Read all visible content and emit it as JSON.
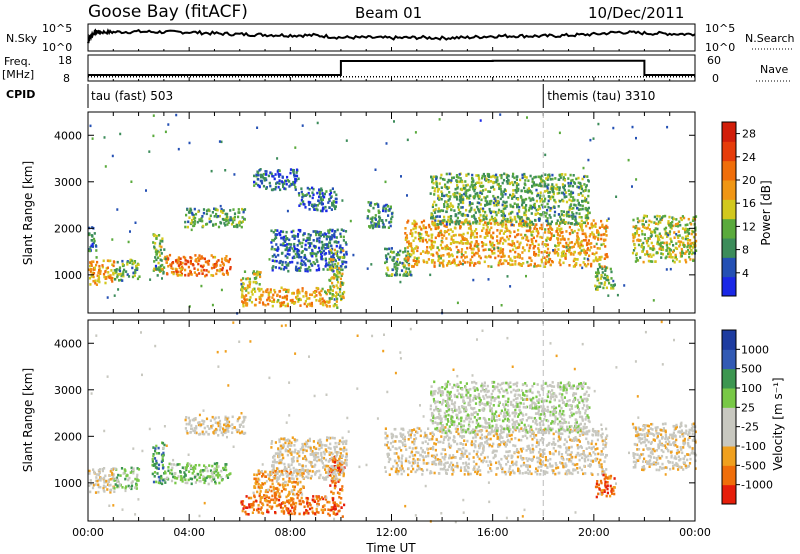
{
  "header": {
    "station": "Goose Bay (fitACF)",
    "beam": "Beam 01",
    "date": "10/Dec/2011"
  },
  "colors": {
    "power_scale": [
      "#1a28e6",
      "#2450b4",
      "#3c8c5a",
      "#5aaa3c",
      "#d2c81e",
      "#f09614",
      "#f06e0a",
      "#e63c0a",
      "#d21e0a"
    ],
    "velocity_scale": [
      "#e61e0a",
      "#f06e0a",
      "#f0a01e",
      "#c8c8c0",
      "#c8c8c0",
      "#78c846",
      "#3c9650",
      "#325ab4",
      "#1e3ca0"
    ]
  },
  "chart_data": [
    {
      "panel": "noise",
      "type": "line",
      "left_label": "N.Sky",
      "right_label": "N.Search",
      "left_ticks": [
        "10^5",
        "10^0"
      ],
      "right_ticks": [
        "10^5",
        "10^0"
      ],
      "x_range": [
        0,
        24
      ],
      "y_range": [
        0,
        1
      ],
      "series": [
        {
          "x": [
            0.0,
            0.1,
            0.3,
            0.5,
            1,
            2,
            3,
            4,
            5,
            6,
            7,
            8,
            9,
            10,
            11,
            12,
            13,
            14,
            15,
            16,
            17,
            18,
            19,
            20,
            21,
            22,
            23,
            24
          ],
          "y": [
            0.3,
            0.55,
            0.72,
            0.7,
            0.7,
            0.72,
            0.7,
            0.7,
            0.65,
            0.62,
            0.6,
            0.58,
            0.58,
            0.5,
            0.5,
            0.48,
            0.5,
            0.48,
            0.5,
            0.55,
            0.56,
            0.55,
            0.58,
            0.62,
            0.7,
            0.66,
            0.64,
            0.62
          ]
        }
      ]
    },
    {
      "panel": "frequency",
      "type": "line",
      "left_label": "Freq.\n[MHz]",
      "right_label": "Nave",
      "left_ticks": [
        "18",
        "8"
      ],
      "right_ticks": [
        "60",
        "0"
      ],
      "x_range": [
        0,
        24
      ],
      "series": [
        {
          "name": "Freq.",
          "x": [
            0,
            10,
            10,
            16,
            16,
            22,
            22,
            24
          ],
          "y": [
            10.3,
            10.3,
            15.7,
            15.7,
            15.8,
            15.8,
            10.3,
            10.3
          ]
        },
        {
          "name": "Nave",
          "x": [
            0,
            24
          ],
          "y": [
            10,
            10
          ]
        }
      ]
    },
    {
      "panel": "cpid",
      "type": "table",
      "label": "CPID",
      "segments": [
        {
          "start": 0,
          "end": 18,
          "text": "tau (fast) 503"
        },
        {
          "start": 18,
          "end": 24,
          "text": "themis (tau) 3310"
        }
      ]
    },
    {
      "panel": "power",
      "type": "heatmap",
      "ylabel": "Slant Range [km]",
      "yticks": [
        "1000",
        "2000",
        "3000",
        "4000"
      ],
      "ylim": [
        180,
        4500
      ],
      "xlim": [
        0,
        24
      ],
      "colorbar_label": "Power [dB]",
      "colorbar_ticks": [
        "4",
        "8",
        "12",
        "16",
        "20",
        "24",
        "28"
      ],
      "colorbar_range": [
        0,
        30
      ],
      "regions": [
        {
          "t0": 0.0,
          "t1": 1.0,
          "r0": 800,
          "r1": 1350,
          "v": 18
        },
        {
          "t0": 0.0,
          "t1": 0.3,
          "r0": 1400,
          "r1": 2050,
          "v": 8
        },
        {
          "t0": 1.0,
          "t1": 2.0,
          "r0": 900,
          "r1": 1350,
          "v": 10
        },
        {
          "t0": 2.5,
          "t1": 3.0,
          "r0": 1000,
          "r1": 1900,
          "v": 12
        },
        {
          "t0": 3.0,
          "t1": 5.6,
          "r0": 1000,
          "r1": 1450,
          "v": 21
        },
        {
          "t0": 3.8,
          "t1": 6.2,
          "r0": 2050,
          "r1": 2450,
          "v": 10
        },
        {
          "t0": 6.0,
          "t1": 6.8,
          "r0": 700,
          "r1": 1100,
          "v": 14
        },
        {
          "t0": 6.0,
          "t1": 9.5,
          "r0": 350,
          "r1": 750,
          "v": 18
        },
        {
          "t0": 6.5,
          "t1": 8.3,
          "r0": 2850,
          "r1": 3300,
          "v": 6
        },
        {
          "t0": 7.2,
          "t1": 10.2,
          "r0": 1100,
          "r1": 2000,
          "v": 6
        },
        {
          "t0": 8.3,
          "t1": 9.8,
          "r0": 2400,
          "r1": 2900,
          "v": 6
        },
        {
          "t0": 9.5,
          "t1": 10.1,
          "r0": 300,
          "r1": 1600,
          "v": 14
        },
        {
          "t0": 11.0,
          "t1": 12.0,
          "r0": 2000,
          "r1": 2600,
          "v": 8
        },
        {
          "t0": 11.7,
          "t1": 12.8,
          "r0": 1000,
          "r1": 1600,
          "v": 10
        },
        {
          "t0": 12.5,
          "t1": 20.5,
          "r0": 1200,
          "r1": 2200,
          "v": 18
        },
        {
          "t0": 13.5,
          "t1": 19.8,
          "r0": 2100,
          "r1": 3200,
          "v": 11
        },
        {
          "t0": 20.0,
          "t1": 20.8,
          "r0": 700,
          "r1": 1200,
          "v": 12
        },
        {
          "t0": 21.5,
          "t1": 24.0,
          "r0": 1300,
          "r1": 2300,
          "v": 14
        }
      ]
    },
    {
      "panel": "velocity",
      "type": "heatmap",
      "ylabel": "Slant Range [km]",
      "yticks": [
        "1000",
        "2000",
        "3000",
        "4000"
      ],
      "ylim": [
        180,
        4500
      ],
      "xlim": [
        0,
        24
      ],
      "xticks": [
        "00:00",
        "04:00",
        "08:00",
        "12:00",
        "16:00",
        "20:00",
        "00:00"
      ],
      "xlabel": "Time UT",
      "colorbar_label": "Velocity [m s⁻¹]",
      "colorbar_ticks": [
        "-1000",
        "-500",
        "-100",
        "-25",
        "25",
        "100",
        "500",
        "1000"
      ],
      "regions": [
        {
          "t0": 0.0,
          "t1": 1.0,
          "r0": 800,
          "r1": 1350,
          "v": 3
        },
        {
          "t0": 1.0,
          "t1": 2.0,
          "r0": 900,
          "r1": 1350,
          "v": 5
        },
        {
          "t0": 2.5,
          "t1": 3.0,
          "r0": 1000,
          "r1": 1900,
          "v": 6
        },
        {
          "t0": 3.0,
          "t1": 5.6,
          "r0": 1000,
          "r1": 1450,
          "v": 5
        },
        {
          "t0": 3.8,
          "t1": 6.2,
          "r0": 2050,
          "r1": 2450,
          "v": 3
        },
        {
          "t0": 6.0,
          "t1": 9.5,
          "r0": 350,
          "r1": 750,
          "v": 1
        },
        {
          "t0": 6.5,
          "t1": 8.5,
          "r0": 700,
          "r1": 1300,
          "v": 2
        },
        {
          "t0": 9.5,
          "t1": 10.1,
          "r0": 300,
          "r1": 1600,
          "v": 1
        },
        {
          "t0": 7.2,
          "t1": 10.2,
          "r0": 1100,
          "r1": 2000,
          "v": 3
        },
        {
          "t0": 11.7,
          "t1": 20.5,
          "r0": 1200,
          "r1": 2200,
          "v": 3
        },
        {
          "t0": 13.5,
          "t1": 19.8,
          "r0": 2100,
          "r1": 3200,
          "v": 4
        },
        {
          "t0": 20.0,
          "t1": 20.8,
          "r0": 700,
          "r1": 1200,
          "v": 1
        },
        {
          "t0": 21.5,
          "t1": 24.0,
          "r0": 1300,
          "r1": 2300,
          "v": 3
        }
      ]
    }
  ]
}
